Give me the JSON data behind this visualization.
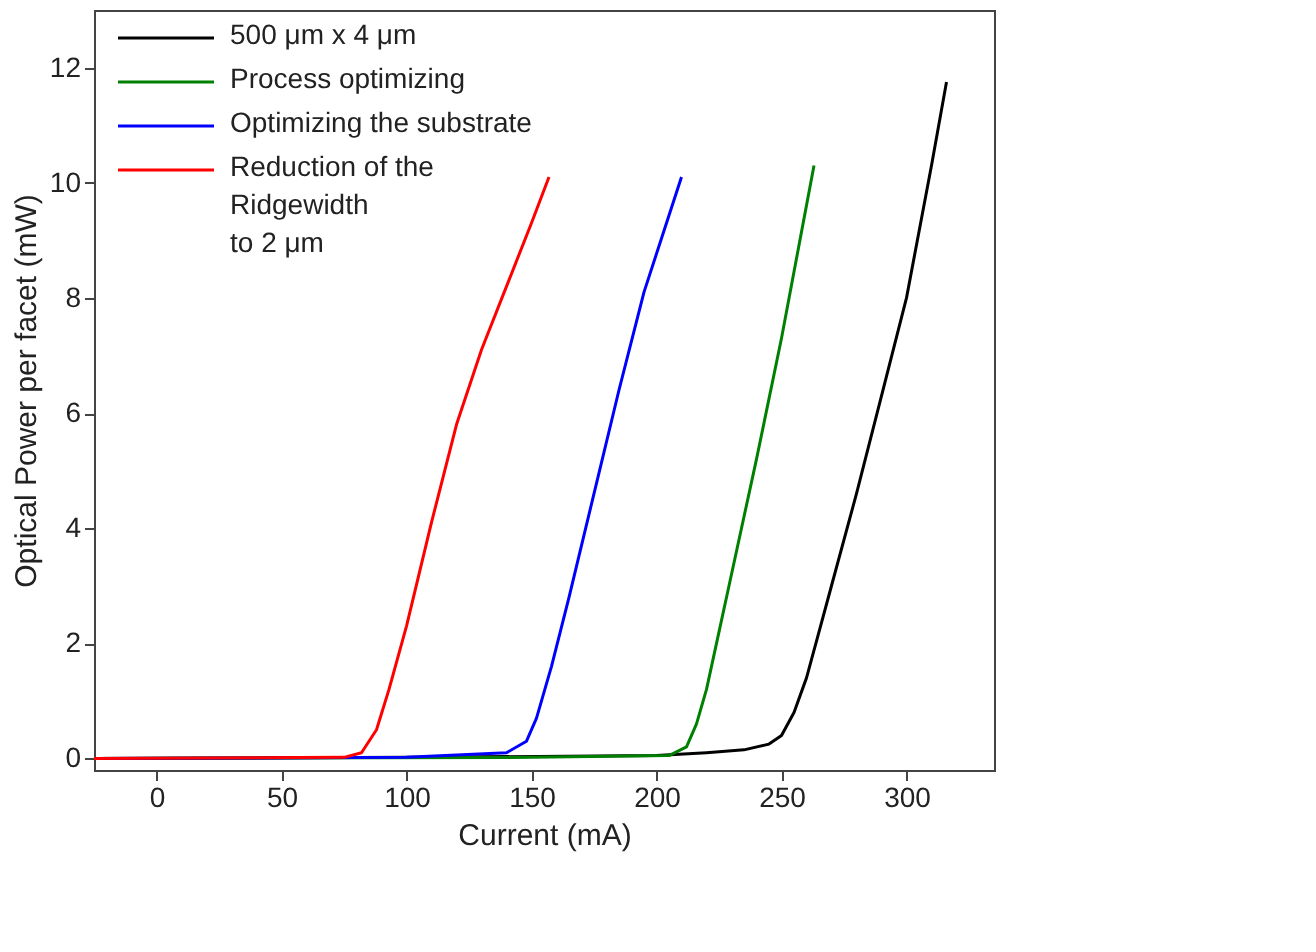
{
  "chart_data": {
    "type": "line",
    "xlabel": "Current (mA)",
    "ylabel": "Optical Power per facet (mW)",
    "xlim": [
      -25,
      335
    ],
    "ylim": [
      -0.2,
      13
    ],
    "xticks": [
      0,
      50,
      100,
      150,
      200,
      250,
      300
    ],
    "yticks": [
      0,
      2,
      4,
      6,
      8,
      10,
      12
    ],
    "grid": false,
    "legend": "top left",
    "marker": "none",
    "line_style": "solid",
    "series": [
      {
        "name": "500 μm x 4 μm",
        "color": "#000000",
        "x": [
          -25,
          100,
          200,
          220,
          235,
          245,
          250,
          255,
          260,
          265,
          270,
          280,
          290,
          300,
          310,
          316
        ],
        "values": [
          0,
          0.02,
          0.05,
          0.1,
          0.15,
          0.25,
          0.4,
          0.8,
          1.4,
          2.2,
          3.0,
          4.6,
          6.3,
          8.0,
          10.3,
          11.75
        ]
      },
      {
        "name": "Process optimizing",
        "color": "#008000",
        "x": [
          -25,
          150,
          205,
          212,
          216,
          220,
          225,
          230,
          240,
          250,
          263
        ],
        "values": [
          0,
          0.02,
          0.05,
          0.2,
          0.6,
          1.2,
          2.2,
          3.2,
          5.2,
          7.3,
          10.3
        ]
      },
      {
        "name": "Optimizing the substrate",
        "color": "#0000ff",
        "x": [
          -25,
          100,
          140,
          148,
          152,
          158,
          165,
          175,
          185,
          195,
          210
        ],
        "values": [
          0,
          0.02,
          0.1,
          0.3,
          0.7,
          1.6,
          2.8,
          4.6,
          6.4,
          8.1,
          10.1
        ]
      },
      {
        "name": "Reduction of the\nRidgewidth\nto 2 μm",
        "color": "#ff0000",
        "x": [
          -25,
          75,
          82,
          88,
          93,
          100,
          110,
          120,
          130,
          140,
          150,
          157
        ],
        "values": [
          0,
          0.02,
          0.1,
          0.5,
          1.2,
          2.3,
          4.1,
          5.8,
          7.1,
          8.2,
          9.3,
          10.1
        ]
      }
    ]
  }
}
